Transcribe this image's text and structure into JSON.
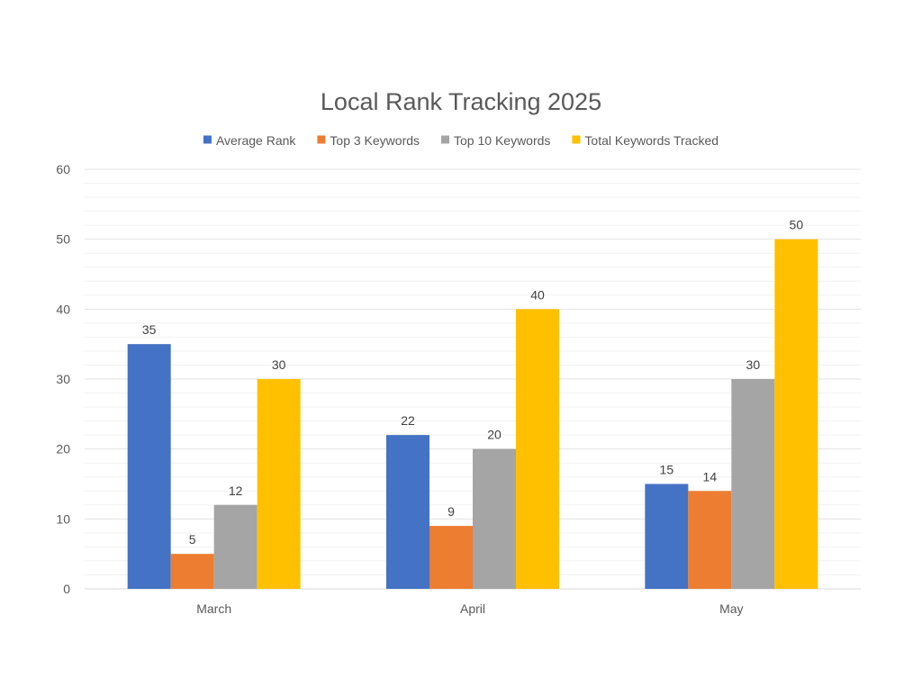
{
  "chart_data": {
    "type": "bar",
    "title": "Local Rank Tracking 2025",
    "xlabel": "",
    "ylabel": "",
    "categories": [
      "March",
      "April",
      "May"
    ],
    "series": [
      {
        "name": "Average Rank",
        "color": "#4472C4",
        "values": [
          35,
          22,
          15
        ]
      },
      {
        "name": "Top 3 Keywords",
        "color": "#ED7D31",
        "values": [
          5,
          9,
          14
        ]
      },
      {
        "name": "Top 10 Keywords",
        "color": "#A5A5A5",
        "values": [
          12,
          20,
          30
        ]
      },
      {
        "name": "Total Keywords Tracked",
        "color": "#FFC000",
        "values": [
          30,
          40,
          50
        ]
      }
    ],
    "ylim": [
      0,
      60
    ],
    "yticks": [
      0,
      10,
      20,
      30,
      40,
      50,
      60
    ],
    "minor_grid_step": 2,
    "grid": true,
    "legend_position": "top",
    "data_labels": true
  }
}
